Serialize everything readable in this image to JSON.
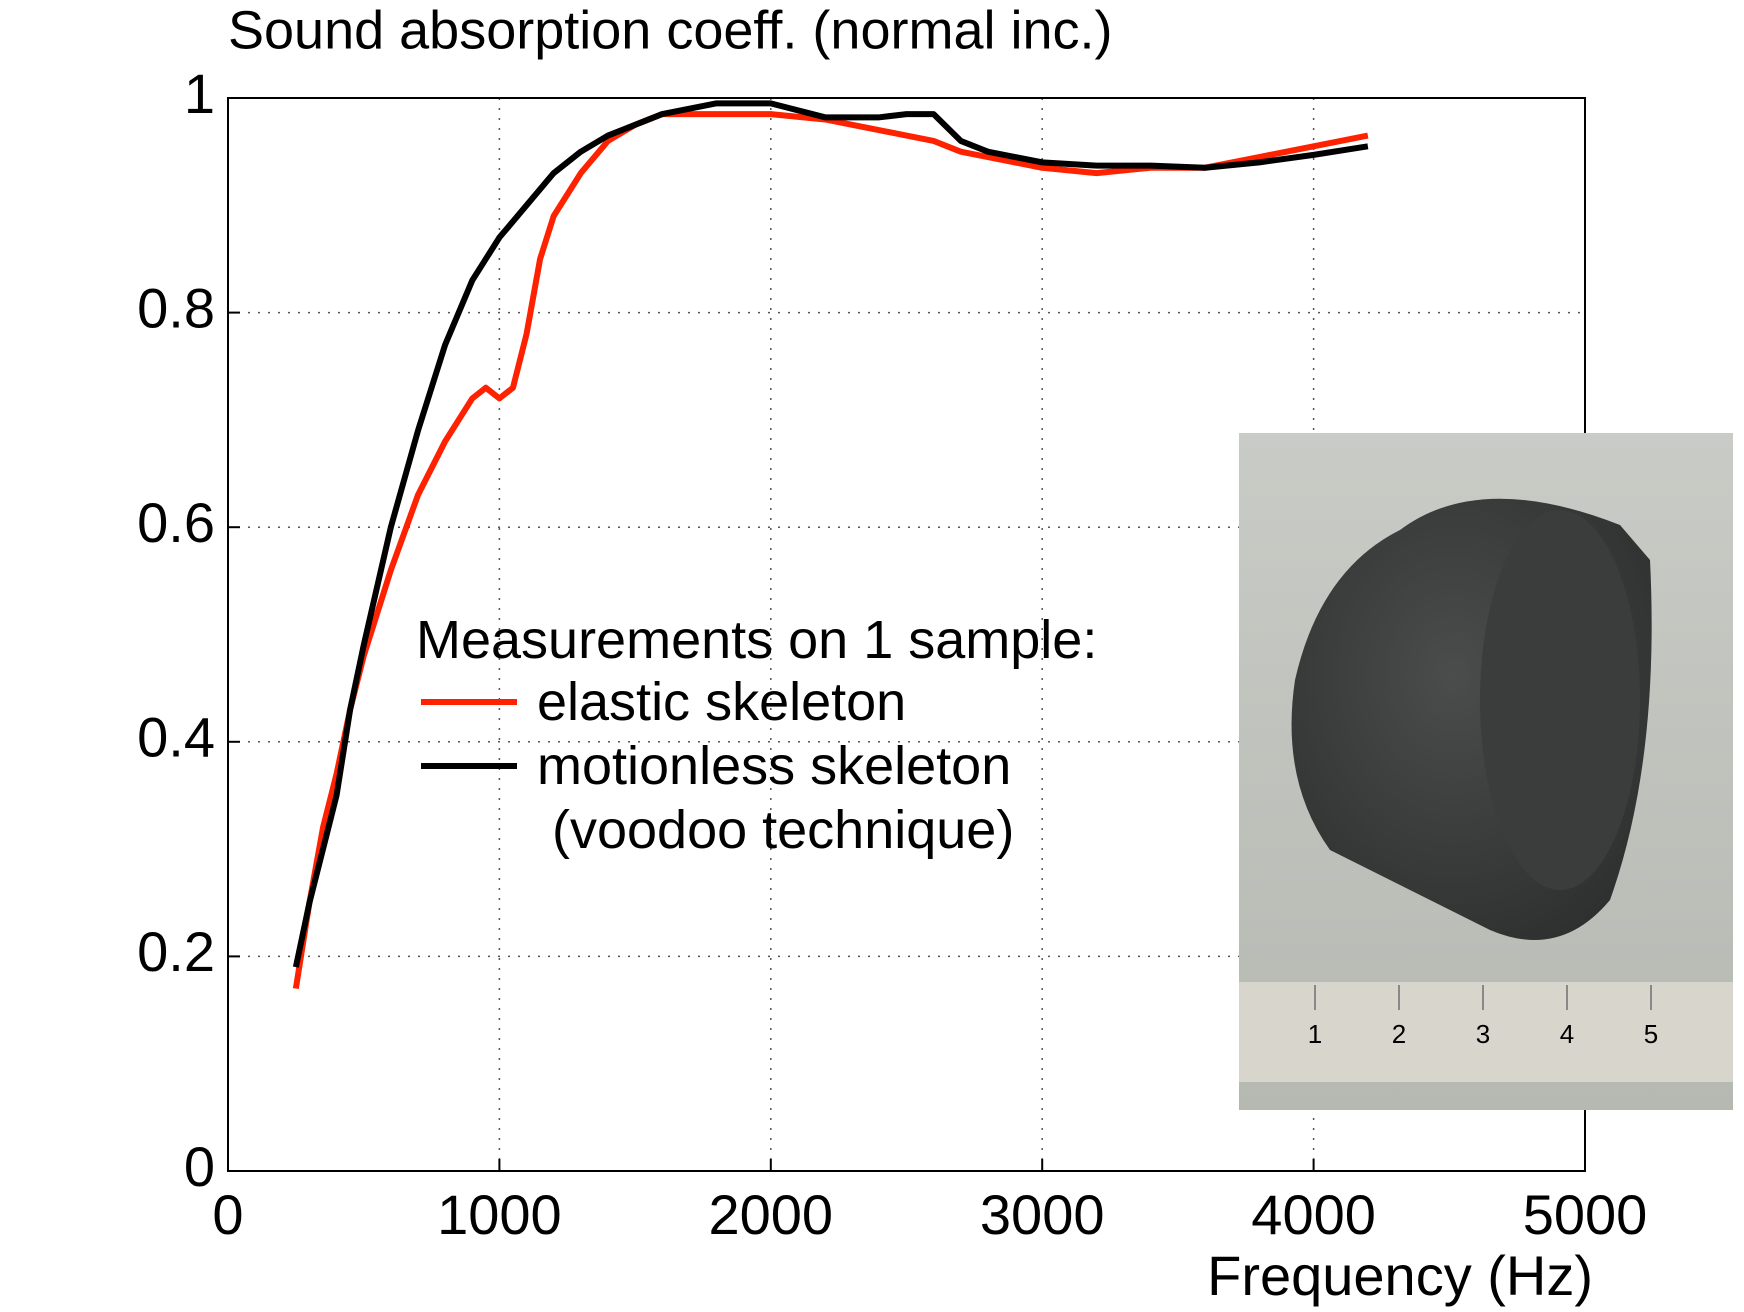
{
  "chart_data": {
    "type": "line",
    "title": "Sound absorption coeff. (normal inc.)",
    "x_label": "Frequency (Hz)",
    "legend_title": "Measurements on 1 sample:",
    "x": [
      250,
      300,
      350,
      400,
      450,
      500,
      600,
      700,
      800,
      900,
      950,
      1000,
      1050,
      1100,
      1150,
      1200,
      1300,
      1400,
      1500,
      1600,
      1800,
      2000,
      2200,
      2400,
      2500,
      2600,
      2700,
      2800,
      3000,
      3200,
      3400,
      3600,
      3800,
      4000,
      4200
    ],
    "series": [
      {
        "name": "elastic skeleton",
        "color": "#ff2200",
        "values": [
          0.17,
          0.25,
          0.32,
          0.37,
          0.43,
          0.48,
          0.56,
          0.63,
          0.68,
          0.72,
          0.73,
          0.72,
          0.73,
          0.78,
          0.85,
          0.89,
          0.93,
          0.96,
          0.975,
          0.985,
          0.985,
          0.985,
          0.98,
          0.97,
          0.965,
          0.96,
          0.95,
          0.945,
          0.935,
          0.93,
          0.935,
          0.935,
          0.945,
          0.955,
          0.965
        ]
      },
      {
        "name": "motionless skeleton\n (voodoo technique)",
        "color": "#000000",
        "values": [
          0.19,
          0.25,
          0.3,
          0.35,
          0.43,
          0.49,
          0.6,
          0.69,
          0.77,
          0.83,
          0.85,
          0.87,
          0.885,
          0.9,
          0.915,
          0.93,
          0.95,
          0.965,
          0.975,
          0.985,
          0.995,
          0.995,
          0.982,
          0.982,
          0.985,
          0.985,
          0.96,
          0.95,
          0.94,
          0.937,
          0.937,
          0.935,
          0.94,
          0.947,
          0.955
        ]
      }
    ],
    "xlim": [
      0,
      5000
    ],
    "xticks": [
      0,
      1000,
      2000,
      3000,
      4000,
      5000
    ],
    "ylim": [
      0,
      1
    ],
    "yticks": [
      0,
      0.2,
      0.4,
      0.6,
      0.8,
      1
    ],
    "grid": true
  },
  "inset": {
    "ruler_labels": [
      "1",
      "2",
      "3",
      "4",
      "5"
    ]
  }
}
